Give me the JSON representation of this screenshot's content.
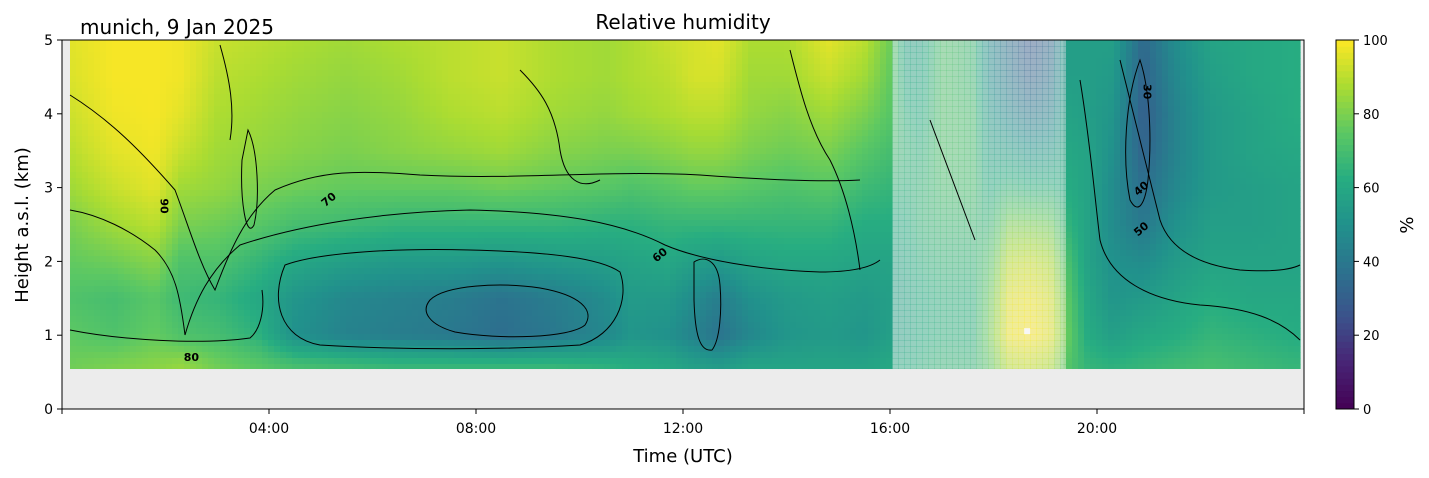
{
  "chart_data": {
    "type": "heatmap",
    "title": "Relative humidity",
    "location_date": "munich, 9 Jan 2025",
    "xlabel": "Time (UTC)",
    "ylabel": "Height a.s.l. (km)",
    "colorbar_label": "%",
    "x_ticks": [
      "04:00",
      "08:00",
      "12:00",
      "16:00",
      "20:00"
    ],
    "x_tick_hours": [
      4,
      8,
      12,
      16,
      20
    ],
    "xlim_hours": [
      0,
      24
    ],
    "y_ticks": [
      "0",
      "1",
      "2",
      "3",
      "4",
      "5"
    ],
    "ylim": [
      0,
      5
    ],
    "colorbar_ticks": [
      "0",
      "20",
      "40",
      "60",
      "80",
      "100"
    ],
    "colorbar_range": [
      0,
      100
    ],
    "colormap": "viridis",
    "data_bottom_km": 0.55,
    "contour_labels": [
      {
        "text": "90",
        "hour": 1.9,
        "km": 2.75
      },
      {
        "text": "70",
        "hour": 5.2,
        "km": 2.8
      },
      {
        "text": "80",
        "hour": 2.5,
        "km": 0.65
      },
      {
        "text": "60",
        "hour": 11.6,
        "km": 2.05
      },
      {
        "text": "30",
        "hour": 20.9,
        "km": 4.3
      },
      {
        "text": "40",
        "hour": 20.9,
        "km": 2.95
      },
      {
        "text": "50",
        "hour": 20.9,
        "km": 2.4
      }
    ],
    "rh_control_points": {
      "hours": [
        0.2,
        1.0,
        1.8,
        2.3,
        3.0,
        3.8,
        4.5,
        5.5,
        6.5,
        7.5,
        8.5,
        9.5,
        10.5,
        11.0,
        11.7,
        12.2,
        12.7,
        13.3,
        14.0,
        14.8,
        15.5,
        16.0,
        16.3,
        16.6,
        17.0,
        17.6,
        17.9,
        18.3,
        18.7,
        19.1,
        19.4,
        19.8,
        20.3,
        20.9,
        21.5,
        22.2,
        23.0,
        23.8
      ],
      "heights_km": [
        0.6,
        1.0,
        1.5,
        2.0,
        2.5,
        3.0,
        3.5,
        4.0,
        4.5,
        5.0
      ],
      "values": [
        [
          78,
          75,
          72,
          76,
          80,
          86,
          90,
          93,
          95,
          96
        ],
        [
          80,
          72,
          70,
          78,
          86,
          92,
          96,
          98,
          99,
          99
        ],
        [
          82,
          76,
          74,
          82,
          90,
          96,
          98,
          99,
          99,
          99
        ],
        [
          84,
          72,
          68,
          72,
          80,
          86,
          92,
          96,
          98,
          98
        ],
        [
          78,
          70,
          66,
          72,
          78,
          84,
          86,
          88,
          90,
          92
        ],
        [
          74,
          64,
          60,
          66,
          74,
          80,
          84,
          86,
          88,
          90
        ],
        [
          70,
          50,
          52,
          60,
          70,
          78,
          82,
          84,
          86,
          88
        ],
        [
          68,
          44,
          46,
          56,
          68,
          76,
          80,
          82,
          84,
          86
        ],
        [
          66,
          42,
          44,
          54,
          66,
          76,
          82,
          84,
          86,
          88
        ],
        [
          66,
          40,
          42,
          54,
          66,
          76,
          84,
          88,
          90,
          90
        ],
        [
          66,
          36,
          38,
          52,
          66,
          78,
          86,
          90,
          92,
          92
        ],
        [
          66,
          40,
          42,
          54,
          66,
          76,
          82,
          86,
          88,
          88
        ],
        [
          64,
          46,
          48,
          56,
          64,
          74,
          80,
          84,
          86,
          86
        ],
        [
          62,
          52,
          54,
          58,
          64,
          72,
          80,
          86,
          88,
          88
        ],
        [
          60,
          50,
          54,
          60,
          66,
          74,
          82,
          88,
          90,
          92
        ],
        [
          56,
          44,
          48,
          56,
          66,
          76,
          84,
          90,
          94,
          94
        ],
        [
          54,
          38,
          42,
          54,
          66,
          76,
          84,
          90,
          94,
          96
        ],
        [
          58,
          46,
          50,
          58,
          66,
          74,
          80,
          84,
          86,
          88
        ],
        [
          58,
          52,
          54,
          60,
          66,
          72,
          78,
          82,
          86,
          88
        ],
        [
          58,
          54,
          56,
          60,
          66,
          74,
          80,
          86,
          92,
          96
        ],
        [
          58,
          52,
          54,
          58,
          62,
          68,
          74,
          80,
          86,
          90
        ],
        [
          60,
          56,
          56,
          58,
          62,
          66,
          70,
          74,
          76,
          78
        ],
        [
          62,
          58,
          58,
          60,
          62,
          64,
          66,
          64,
          60,
          58
        ],
        [
          64,
          62,
          62,
          64,
          66,
          66,
          64,
          62,
          60,
          58
        ],
        [
          66,
          64,
          64,
          66,
          68,
          70,
          72,
          72,
          72,
          72
        ],
        [
          66,
          64,
          64,
          66,
          68,
          70,
          70,
          70,
          68,
          68
        ],
        [
          74,
          78,
          76,
          72,
          66,
          62,
          58,
          54,
          50,
          48
        ],
        [
          90,
          98,
          96,
          90,
          80,
          66,
          56,
          46,
          40,
          36
        ],
        [
          92,
          100,
          98,
          92,
          80,
          64,
          52,
          40,
          32,
          28
        ],
        [
          88,
          96,
          94,
          88,
          78,
          64,
          54,
          44,
          38,
          34
        ],
        [
          74,
          78,
          76,
          72,
          66,
          62,
          60,
          58,
          56,
          56
        ],
        [
          66,
          62,
          60,
          58,
          58,
          58,
          58,
          56,
          56,
          56
        ],
        [
          64,
          56,
          52,
          50,
          48,
          48,
          50,
          52,
          54,
          56
        ],
        [
          66,
          60,
          54,
          48,
          40,
          36,
          32,
          30,
          32,
          34
        ],
        [
          68,
          62,
          58,
          54,
          50,
          46,
          44,
          44,
          46,
          48
        ],
        [
          70,
          66,
          62,
          58,
          56,
          54,
          54,
          54,
          56,
          58
        ],
        [
          68,
          64,
          60,
          58,
          56,
          56,
          58,
          58,
          60,
          60
        ],
        [
          66,
          62,
          60,
          58,
          58,
          58,
          60,
          62,
          62,
          62
        ]
      ]
    }
  }
}
